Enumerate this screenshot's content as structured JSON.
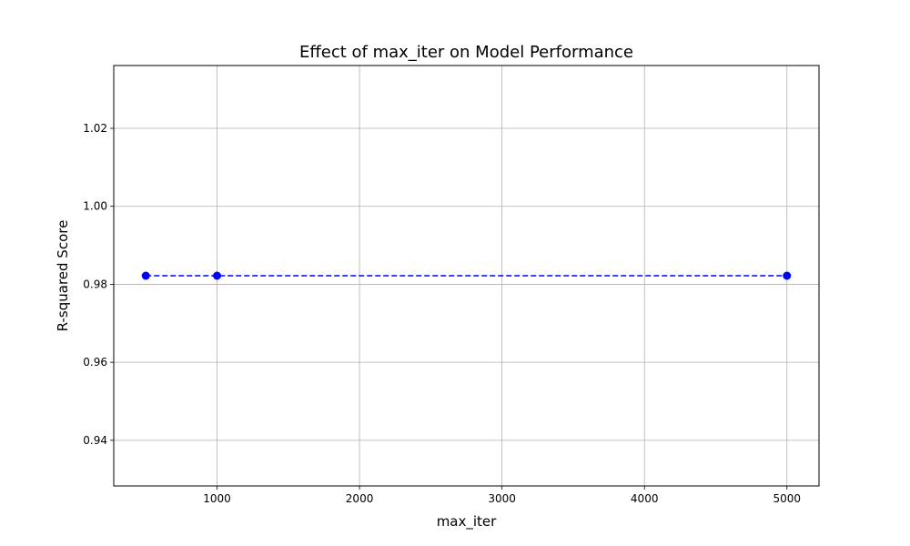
{
  "chart_data": {
    "type": "line",
    "title": "Effect of max_iter on Model Performance",
    "xlabel": "max_iter",
    "ylabel": "R-squared Score",
    "xlim": [
      275,
      5225
    ],
    "ylim": [
      0.9283,
      1.0361
    ],
    "xticks": [
      1000,
      2000,
      3000,
      4000,
      5000
    ],
    "xtick_labels": [
      "1000",
      "2000",
      "3000",
      "4000",
      "5000"
    ],
    "yticks": [
      0.94,
      0.96,
      0.98,
      1.0,
      1.02
    ],
    "ytick_labels": [
      "0.94",
      "0.96",
      "0.98",
      "1.00",
      "1.02"
    ],
    "grid": true,
    "series": [
      {
        "x": [
          500,
          1000,
          5000
        ],
        "y": [
          0.9822,
          0.9822,
          0.9822
        ],
        "color": "#0000ff",
        "line_style": "dashed",
        "marker": "circle"
      }
    ]
  }
}
